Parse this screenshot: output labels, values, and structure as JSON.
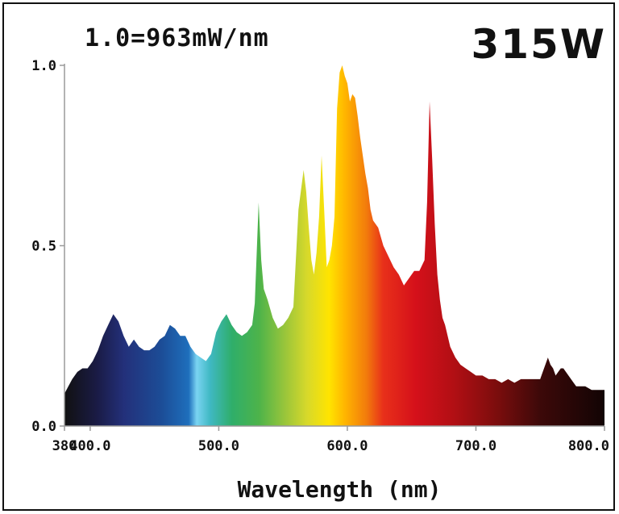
{
  "header": {
    "scale_note": "1.0=963mW/nm",
    "wattage": "315W"
  },
  "chart_data": {
    "type": "area",
    "xlabel": "Wavelength (nm)",
    "ylabel": "",
    "xlim": [
      380,
      800
    ],
    "ylim": [
      0,
      1.0
    ],
    "x_ticks": [
      {
        "value": 380,
        "label": "380"
      },
      {
        "value": 400,
        "label": "400.0"
      },
      {
        "value": 500,
        "label": "500.0"
      },
      {
        "value": 600,
        "label": "600.0"
      },
      {
        "value": 700,
        "label": "700.0"
      },
      {
        "value": 800,
        "label": "800.0"
      }
    ],
    "y_ticks": [
      {
        "value": 0.0,
        "label": "0.0"
      },
      {
        "value": 0.5,
        "label": "0.5"
      },
      {
        "value": 1.0,
        "label": "1.0"
      }
    ],
    "fill": "visible-spectrum gradient",
    "x": [
      380,
      383,
      386,
      390,
      394,
      398,
      402,
      406,
      410,
      414,
      418,
      422,
      426,
      430,
      434,
      438,
      442,
      446,
      450,
      454,
      458,
      462,
      466,
      470,
      474,
      478,
      482,
      486,
      490,
      494,
      498,
      502,
      506,
      510,
      514,
      518,
      522,
      526,
      528,
      531,
      533,
      535,
      538,
      542,
      546,
      550,
      554,
      558,
      562,
      566,
      568,
      570,
      572,
      574,
      576,
      578,
      580,
      582,
      584,
      586,
      588,
      590,
      592,
      594,
      596,
      598,
      600,
      602,
      604,
      606,
      608,
      610,
      612,
      614,
      616,
      618,
      620,
      624,
      628,
      632,
      636,
      640,
      644,
      648,
      652,
      656,
      660,
      662,
      664,
      666,
      668,
      670,
      672,
      674,
      676,
      680,
      684,
      688,
      692,
      696,
      700,
      705,
      710,
      715,
      720,
      725,
      730,
      735,
      740,
      745,
      750,
      752,
      754,
      756,
      758,
      760,
      762,
      764,
      766,
      768,
      770,
      772,
      774,
      776,
      778,
      780,
      785,
      790,
      795,
      800
    ],
    "y": [
      0.09,
      0.11,
      0.13,
      0.15,
      0.16,
      0.16,
      0.18,
      0.21,
      0.25,
      0.28,
      0.31,
      0.29,
      0.25,
      0.22,
      0.24,
      0.22,
      0.21,
      0.21,
      0.22,
      0.24,
      0.25,
      0.28,
      0.27,
      0.25,
      0.25,
      0.22,
      0.2,
      0.19,
      0.18,
      0.2,
      0.26,
      0.29,
      0.31,
      0.28,
      0.26,
      0.25,
      0.26,
      0.28,
      0.34,
      0.62,
      0.46,
      0.38,
      0.35,
      0.3,
      0.27,
      0.28,
      0.3,
      0.33,
      0.6,
      0.71,
      0.65,
      0.55,
      0.46,
      0.42,
      0.48,
      0.58,
      0.75,
      0.6,
      0.44,
      0.46,
      0.5,
      0.58,
      0.88,
      0.98,
      1.0,
      0.97,
      0.95,
      0.9,
      0.92,
      0.91,
      0.86,
      0.8,
      0.75,
      0.7,
      0.66,
      0.6,
      0.57,
      0.55,
      0.5,
      0.47,
      0.44,
      0.42,
      0.39,
      0.41,
      0.43,
      0.43,
      0.46,
      0.62,
      0.9,
      0.74,
      0.56,
      0.42,
      0.35,
      0.3,
      0.28,
      0.22,
      0.19,
      0.17,
      0.16,
      0.15,
      0.14,
      0.14,
      0.13,
      0.13,
      0.12,
      0.13,
      0.12,
      0.13,
      0.13,
      0.13,
      0.13,
      0.15,
      0.17,
      0.19,
      0.17,
      0.16,
      0.14,
      0.15,
      0.16,
      0.16,
      0.15,
      0.14,
      0.13,
      0.12,
      0.11,
      0.11,
      0.11,
      0.1,
      0.1,
      0.1
    ]
  }
}
